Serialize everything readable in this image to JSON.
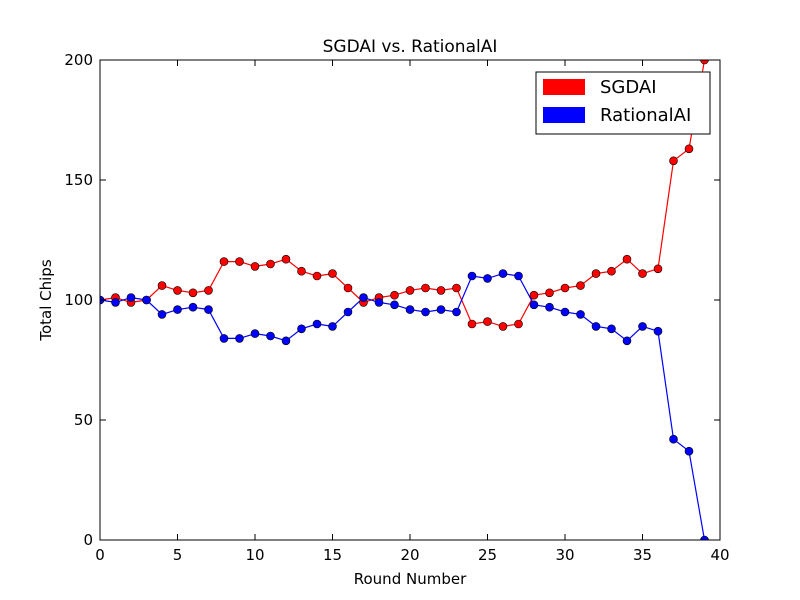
{
  "chart_data": {
    "type": "line",
    "title": "SGDAI vs. RationalAI",
    "xlabel": "Round Number",
    "ylabel": "Total Chips",
    "xlim": [
      0,
      40
    ],
    "ylim": [
      0,
      200
    ],
    "xticks": [
      0,
      5,
      10,
      15,
      20,
      25,
      30,
      35,
      40
    ],
    "yticks": [
      0,
      50,
      100,
      150,
      200
    ],
    "grid": false,
    "legend_position": "top-right",
    "x": [
      0,
      1,
      2,
      3,
      4,
      5,
      6,
      7,
      8,
      9,
      10,
      11,
      12,
      13,
      14,
      15,
      16,
      17,
      18,
      19,
      20,
      21,
      22,
      23,
      24,
      25,
      26,
      27,
      28,
      29,
      30,
      31,
      32,
      33,
      34,
      35,
      36,
      37,
      38,
      39
    ],
    "series": [
      {
        "name": "SGDAI",
        "color": "#ff0000",
        "values": [
          100,
          101,
          99,
          100,
          106,
          104,
          103,
          104,
          116,
          116,
          114,
          115,
          117,
          112,
          110,
          111,
          105,
          99,
          101,
          102,
          104,
          105,
          104,
          105,
          90,
          91,
          89,
          90,
          102,
          103,
          105,
          106,
          111,
          112,
          117,
          111,
          113,
          158,
          163,
          200
        ]
      },
      {
        "name": "RationalAI",
        "color": "#0000ff",
        "values": [
          100,
          99,
          101,
          100,
          94,
          96,
          97,
          96,
          84,
          84,
          86,
          85,
          83,
          88,
          90,
          89,
          95,
          101,
          99,
          98,
          96,
          95,
          96,
          95,
          110,
          109,
          111,
          110,
          98,
          97,
          95,
          94,
          89,
          88,
          83,
          89,
          87,
          42,
          37,
          0
        ]
      }
    ]
  }
}
